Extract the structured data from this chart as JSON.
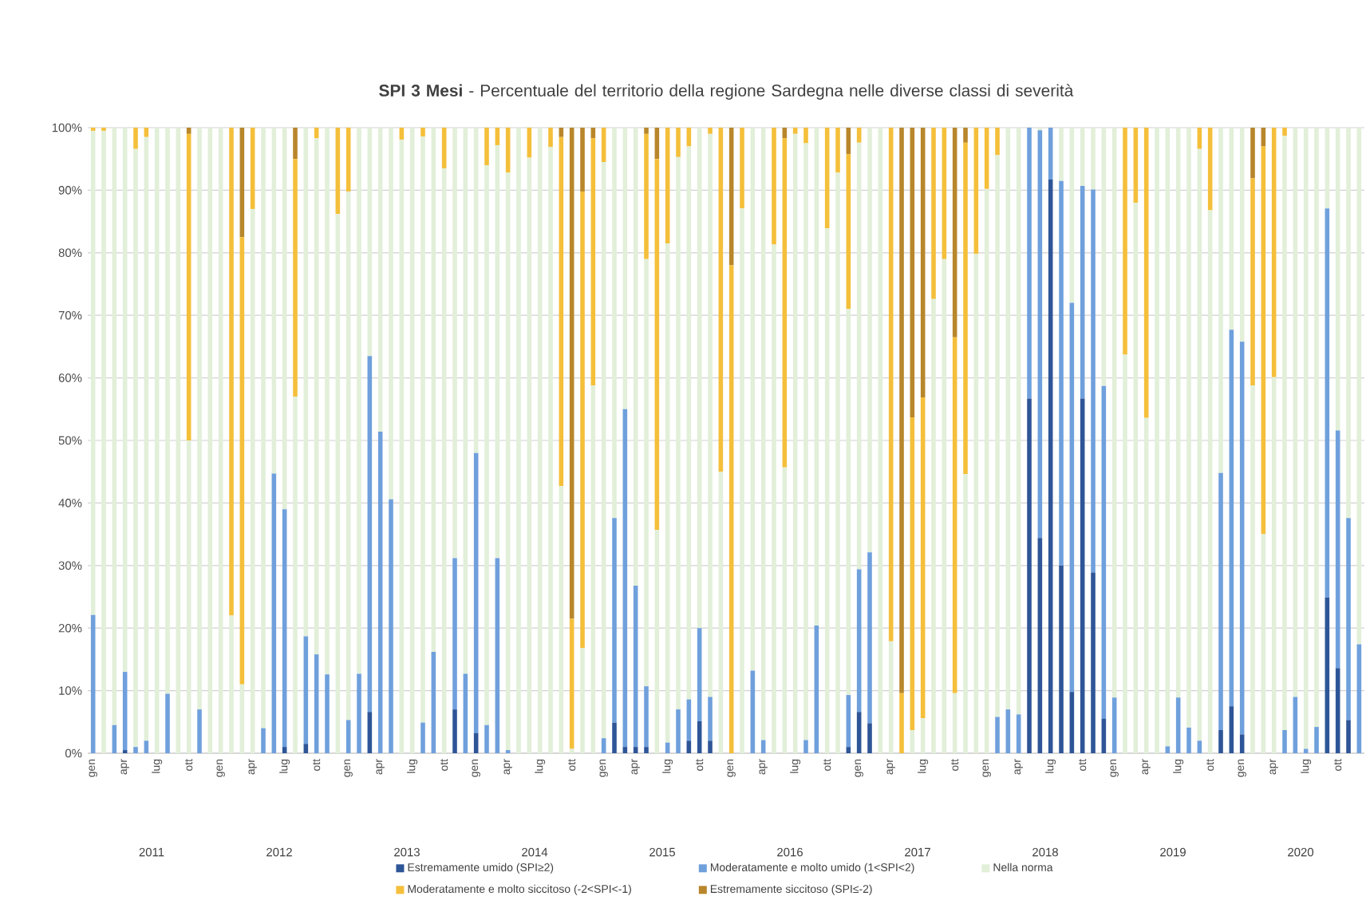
{
  "chart_data": {
    "type": "bar",
    "stacked": true,
    "title": "**SPI 3 Mesi** - Percentuale del territorio della regione Sardegna nelle diverse classi di severità",
    "categories": [
      "gen",
      null,
      null,
      "apr",
      null,
      null,
      "lug",
      null,
      null,
      "ott",
      null,
      null,
      "gen",
      null,
      null,
      "apr",
      null,
      null,
      "lug",
      null,
      null,
      "ott",
      null,
      null,
      "gen",
      null,
      null,
      "apr",
      null,
      null,
      "lug",
      null,
      null,
      "ott",
      null,
      null,
      "gen",
      null,
      null,
      "apr",
      null,
      null,
      "lug",
      null,
      null,
      "ott",
      null,
      null,
      "gen",
      null,
      null,
      "apr",
      null,
      null,
      "lug",
      null,
      null,
      "ott",
      null,
      null,
      "gen",
      null,
      null,
      "apr",
      null,
      null,
      "lug",
      null,
      null,
      "ott",
      null,
      null,
      "gen",
      null,
      null,
      "apr",
      null,
      null,
      "lug",
      null,
      null,
      "ott",
      null,
      null,
      "gen",
      null,
      null,
      "apr",
      null,
      null,
      "lug",
      null,
      null,
      "ott",
      null,
      null,
      "gen",
      null,
      null,
      "apr",
      null,
      null,
      "lug",
      null,
      null,
      "ott",
      null,
      null,
      "gen",
      null,
      null,
      "apr",
      null,
      null,
      "lug",
      null,
      null,
      "ott",
      null,
      null
    ],
    "series": [
      {
        "name": "Estremamente umido (SPI≥2)",
        "color": "#2e5597",
        "values": [
          0,
          0,
          0,
          0.5,
          0,
          0,
          0,
          0,
          0,
          0,
          0,
          0,
          0,
          0,
          0,
          0,
          0,
          0,
          1,
          0,
          1.5,
          0,
          0,
          0,
          0,
          0,
          6.6,
          0,
          0,
          0,
          0,
          0,
          0,
          0,
          7,
          0,
          3.2,
          0,
          0,
          0,
          0,
          0,
          0,
          0,
          0,
          0,
          0,
          0,
          0,
          4.9,
          1,
          1,
          1,
          0,
          0,
          0,
          2,
          5.1,
          2,
          0,
          0,
          0,
          0,
          0,
          0,
          0,
          0,
          0,
          0,
          0,
          0,
          1,
          6.6,
          4.8,
          0,
          0,
          0,
          0,
          0,
          0,
          0,
          0,
          0,
          0,
          0,
          0,
          0,
          0,
          56.7,
          34.4,
          91.7,
          30,
          9.8,
          56.7,
          28.9,
          5.5,
          0,
          0,
          0,
          0,
          0,
          0,
          0,
          0,
          0,
          0,
          3.7,
          7.5,
          3,
          0,
          0,
          0,
          0,
          0,
          0,
          0,
          24.9,
          13.6,
          5.3,
          0
        ]
      },
      {
        "name": "Moderatamente e molto umido (1<SPI<2)",
        "color": "#6fa0dc",
        "values": [
          22.1,
          0,
          4.5,
          12.5,
          1,
          2,
          0,
          9.5,
          0,
          0,
          7,
          0,
          0,
          0,
          0,
          0,
          4,
          44.7,
          38,
          0,
          17.2,
          15.8,
          12.6,
          0,
          5.3,
          12.7,
          56.9,
          51.4,
          40.6,
          0,
          0,
          4.9,
          16.2,
          0,
          24.2,
          12.7,
          44.8,
          4.5,
          31.2,
          0.5,
          0,
          0,
          0,
          0,
          0,
          0,
          0,
          0,
          2.4,
          32.7,
          54,
          25.8,
          9.7,
          0,
          1.7,
          7,
          6.6,
          14.9,
          7,
          0,
          0,
          0,
          13.2,
          2.1,
          0,
          0,
          0,
          2.1,
          20.4,
          0,
          0,
          8.3,
          22.8,
          27.3,
          0,
          0,
          0,
          0,
          0,
          0,
          0,
          0,
          0,
          0,
          0,
          5.8,
          7,
          6.2,
          43.3,
          65.2,
          8.3,
          61.5,
          62.2,
          34,
          61.2,
          53.2,
          8.9,
          0,
          0,
          0,
          0,
          1.1,
          8.9,
          4.1,
          2,
          0,
          41.1,
          60.2,
          62.8,
          0,
          0,
          0,
          3.7,
          9,
          0.7,
          4.2,
          62.2,
          38,
          32.3,
          17.4
        ]
      },
      {
        "name": "Nella norma",
        "color": "#e2efd9",
        "values": [
          77.4,
          99.5,
          95.5,
          87,
          95.6,
          96.5,
          100,
          90.5,
          100,
          50,
          93,
          100,
          100,
          22,
          11,
          87,
          96,
          55.3,
          61,
          57,
          81.3,
          82.5,
          87.4,
          86.2,
          84.5,
          87.3,
          36.5,
          48.6,
          59.4,
          98.1,
          100,
          93.7,
          83.8,
          93.5,
          68.8,
          87.3,
          52,
          89.5,
          66,
          92.3,
          100,
          95.2,
          100,
          96.9,
          42.7,
          0.7,
          16.8,
          58.8,
          92.1,
          62.4,
          45,
          73.2,
          68.3,
          35.7,
          79.8,
          88.3,
          88.4,
          80,
          90,
          45,
          0,
          87.1,
          86.8,
          97.9,
          81.3,
          45.7,
          99,
          95.4,
          79.6,
          83.9,
          92.8,
          61.7,
          68.2,
          67.9,
          100,
          17.9,
          0,
          3.7,
          5.6,
          72.6,
          79,
          9.6,
          44.6,
          79.8,
          90.2,
          89.8,
          93,
          93.8,
          0,
          0.4,
          0,
          8.5,
          28,
          9.3,
          9.9,
          41.3,
          91.1,
          63.7,
          88,
          53.6,
          100,
          98.9,
          91.1,
          95.9,
          94.6,
          86.8,
          55.2,
          32.3,
          34.2,
          58.8,
          35,
          60.1,
          95,
          91,
          99.3,
          95.8,
          12.9,
          48.4,
          62.4,
          82.6
        ]
      },
      {
        "name": "Moderatamente e molto siccitoso (-2<SPI<-1)",
        "color": "#f4bf3a",
        "values": [
          0.5,
          0.5,
          0,
          0,
          3.4,
          1.5,
          0,
          0,
          0,
          49,
          0,
          0,
          0,
          78,
          71.5,
          13,
          0,
          0,
          0,
          38,
          0,
          1.7,
          0,
          13.8,
          10.2,
          0,
          0,
          0,
          0,
          1.9,
          0,
          1.4,
          0,
          6.5,
          0,
          0,
          0,
          6,
          2.8,
          7.2,
          0,
          4.8,
          0,
          3.1,
          55.8,
          20.8,
          73,
          39.5,
          5.5,
          0,
          0,
          0,
          20,
          59.3,
          18.5,
          4.7,
          3,
          0,
          1,
          55,
          78,
          12.9,
          0,
          0,
          18.7,
          52.6,
          1,
          2.5,
          0,
          16.1,
          7.2,
          24.8,
          2.4,
          0,
          0,
          82.1,
          9.6,
          50,
          51.3,
          27.4,
          21,
          56.9,
          53,
          20.2,
          9.8,
          4.4,
          0,
          0,
          0,
          0,
          0,
          0,
          0,
          0,
          0,
          0,
          0,
          36.3,
          12,
          46.4,
          0,
          0,
          0,
          0,
          3.4,
          13.2,
          0,
          0,
          0,
          33.1,
          62,
          39.9,
          1.3,
          0,
          0,
          0,
          0,
          0,
          0,
          0
        ]
      },
      {
        "name": "Estremamente siccitoso (SPI≤-2)",
        "color": "#b8862b",
        "values": [
          0,
          0,
          0,
          0,
          0,
          0,
          0,
          0,
          0,
          1,
          0,
          0,
          0,
          0,
          17.5,
          0,
          0,
          0,
          0,
          5,
          0,
          0,
          0,
          0,
          0,
          0,
          0,
          0,
          0,
          0,
          0,
          0,
          0,
          0,
          0,
          0,
          0,
          0,
          0,
          0,
          0,
          0,
          0,
          0,
          1.5,
          78.5,
          10.2,
          1.7,
          0,
          0,
          0,
          0,
          1,
          5,
          0,
          0,
          0,
          0,
          0,
          0,
          22,
          0,
          0,
          0,
          0,
          1.7,
          0,
          0,
          0,
          0,
          0,
          4.2,
          0,
          0,
          0,
          0,
          90.4,
          46.3,
          43.1,
          0,
          0,
          33.5,
          2.4,
          0,
          0,
          0,
          0,
          0,
          0,
          0,
          0,
          0,
          0,
          0,
          0,
          0,
          0,
          0,
          0,
          0,
          0,
          0,
          0,
          0,
          0,
          0,
          0,
          0,
          0,
          8.1,
          3,
          0,
          0,
          0,
          0,
          0,
          0,
          0,
          0,
          0
        ]
      }
    ],
    "ylim": [
      0,
      100
    ],
    "yticks": [
      {
        "value": 0,
        "label": "0%"
      },
      {
        "value": 10,
        "label": "10%"
      },
      {
        "value": 20,
        "label": "20%"
      },
      {
        "value": 30,
        "label": "30%"
      },
      {
        "value": 40,
        "label": "40%"
      },
      {
        "value": 50,
        "label": "50%"
      },
      {
        "value": 60,
        "label": "60%"
      },
      {
        "value": 70,
        "label": "70%"
      },
      {
        "value": 80,
        "label": "80%"
      },
      {
        "value": 90,
        "label": "90%"
      },
      {
        "value": 100,
        "label": "100%"
      }
    ],
    "grid": "y",
    "legend": "bottom",
    "annotations": [
      "2011",
      "2012",
      "2013",
      "2014",
      "2015",
      "2016",
      "2017",
      "2018",
      "2019",
      "2020"
    ]
  }
}
